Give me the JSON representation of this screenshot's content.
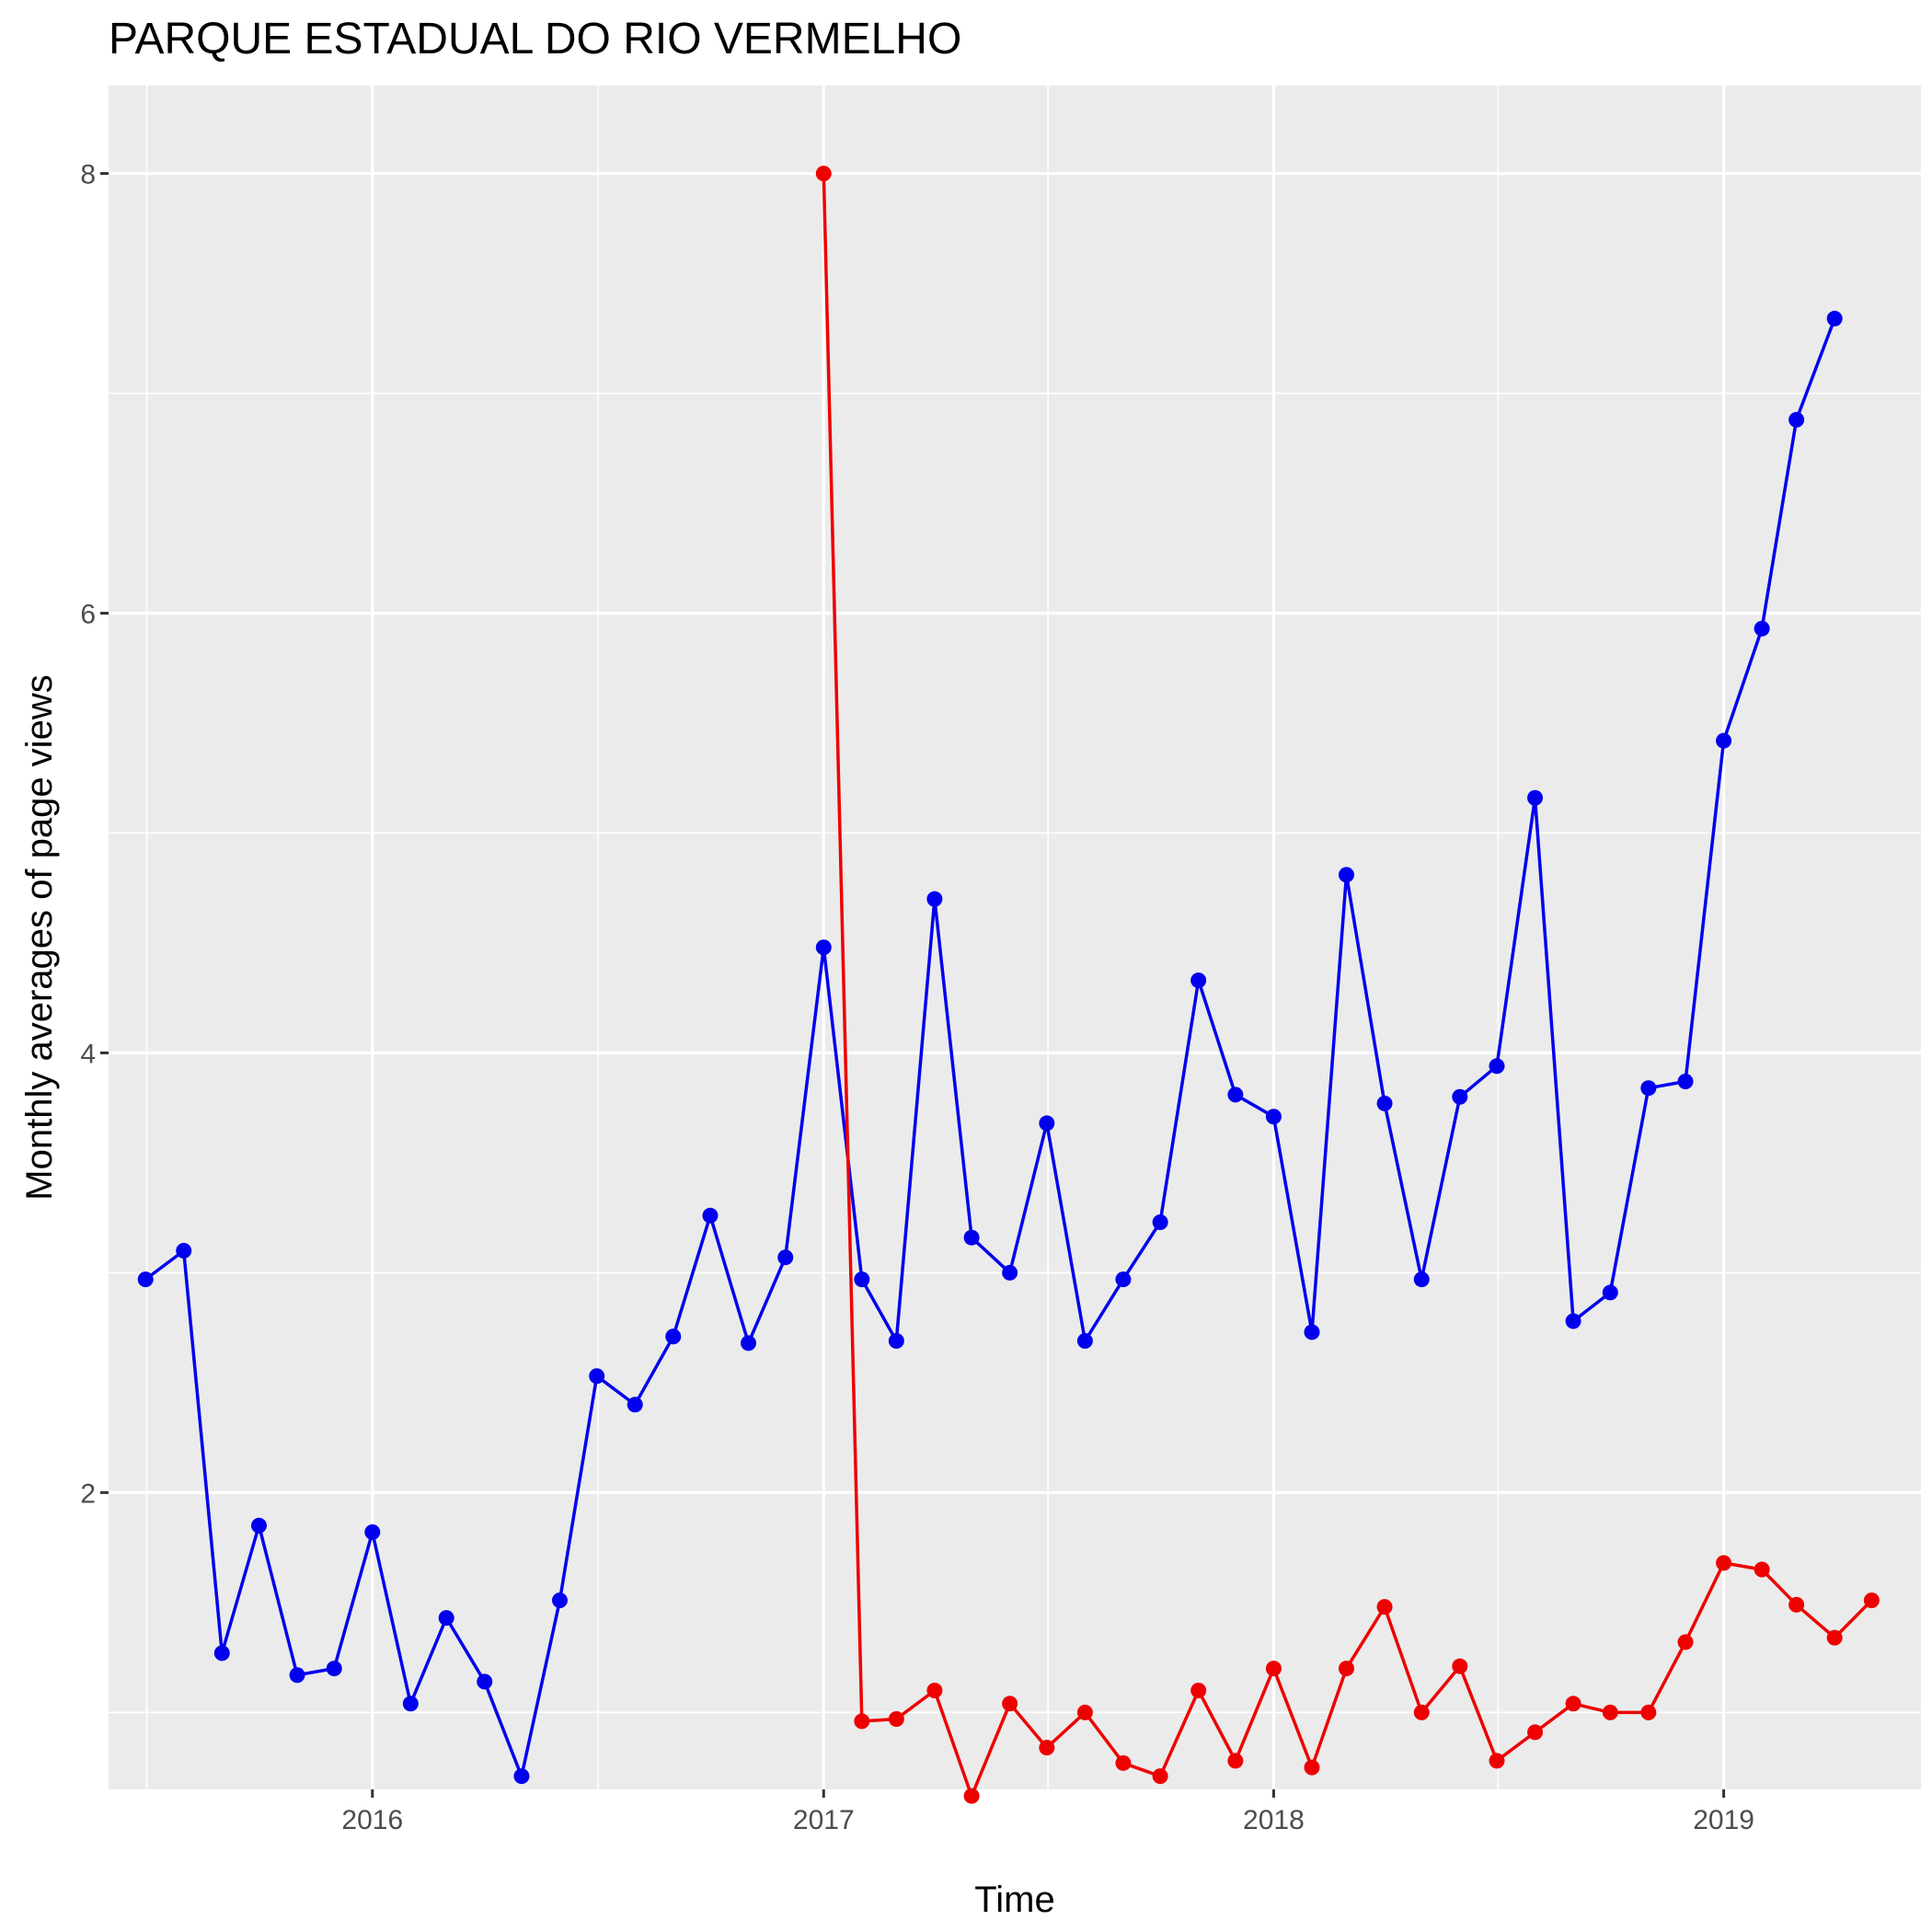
{
  "chart_data": {
    "type": "line",
    "title": "PARQUE ESTADUAL DO RIO VERMELHO",
    "xlabel": "Time",
    "ylabel": "Monthly averages of page views",
    "xlim": [
      "2015-06-01",
      "2019-06-10"
    ],
    "ylim": [
      0.65,
      8.4
    ],
    "x_ticks": [
      {
        "label": "2016",
        "value": "2016-01-01"
      },
      {
        "label": "2017",
        "value": "2017-01-01"
      },
      {
        "label": "2018",
        "value": "2018-01-01"
      },
      {
        "label": "2019",
        "value": "2019-01-01"
      }
    ],
    "y_ticks": [
      2,
      4,
      6,
      8
    ],
    "grid": true,
    "legend": "none",
    "colors": {
      "panel": "#ebebeb",
      "grid": "#ffffff",
      "tick_label": "#4d4d4d"
    },
    "series": [
      {
        "color": "#0000ee",
        "points": [
          [
            "2015-07-01",
            2.97
          ],
          [
            "2015-08-01",
            3.1
          ],
          [
            "2015-09-01",
            1.27
          ],
          [
            "2015-10-01",
            1.85
          ],
          [
            "2015-11-01",
            1.17
          ],
          [
            "2015-12-01",
            1.2
          ],
          [
            "2016-01-01",
            1.82
          ],
          [
            "2016-02-01",
            1.04
          ],
          [
            "2016-03-01",
            1.43
          ],
          [
            "2016-04-01",
            1.14
          ],
          [
            "2016-05-01",
            0.71
          ],
          [
            "2016-06-01",
            1.51
          ],
          [
            "2016-07-01",
            2.53
          ],
          [
            "2016-08-01",
            2.4
          ],
          [
            "2016-09-01",
            2.71
          ],
          [
            "2016-10-01",
            3.26
          ],
          [
            "2016-11-01",
            2.68
          ],
          [
            "2016-12-01",
            3.07
          ],
          [
            "2017-01-01",
            4.48
          ],
          [
            "2017-02-01",
            2.97
          ],
          [
            "2017-03-01",
            2.69
          ],
          [
            "2017-04-01",
            4.7
          ],
          [
            "2017-05-01",
            3.16
          ],
          [
            "2017-06-01",
            3.0
          ],
          [
            "2017-07-01",
            3.68
          ],
          [
            "2017-08-01",
            2.69
          ],
          [
            "2017-09-01",
            2.97
          ],
          [
            "2017-10-01",
            3.23
          ],
          [
            "2017-11-01",
            4.33
          ],
          [
            "2017-12-01",
            3.81
          ],
          [
            "2018-01-01",
            3.71
          ],
          [
            "2018-02-01",
            2.73
          ],
          [
            "2018-03-01",
            4.81
          ],
          [
            "2018-04-01",
            3.77
          ],
          [
            "2018-05-01",
            2.97
          ],
          [
            "2018-06-01",
            3.8
          ],
          [
            "2018-07-01",
            3.94
          ],
          [
            "2018-08-01",
            5.16
          ],
          [
            "2018-09-01",
            2.78
          ],
          [
            "2018-10-01",
            2.91
          ],
          [
            "2018-11-01",
            3.84
          ],
          [
            "2018-12-01",
            3.87
          ],
          [
            "2019-01-01",
            5.42
          ],
          [
            "2019-02-01",
            5.93
          ],
          [
            "2019-03-01",
            6.88
          ],
          [
            "2019-04-01",
            7.34
          ]
        ]
      },
      {
        "color": "#ee0000",
        "points": [
          [
            "2017-01-01",
            8.0
          ],
          [
            "2017-02-01",
            0.96
          ],
          [
            "2017-03-01",
            0.97
          ],
          [
            "2017-04-01",
            1.1
          ],
          [
            "2017-05-01",
            0.62
          ],
          [
            "2017-06-01",
            1.04
          ],
          [
            "2017-07-01",
            0.84
          ],
          [
            "2017-08-01",
            1.0
          ],
          [
            "2017-09-01",
            0.77
          ],
          [
            "2017-10-01",
            0.71
          ],
          [
            "2017-11-01",
            1.1
          ],
          [
            "2017-12-01",
            0.78
          ],
          [
            "2018-01-01",
            1.2
          ],
          [
            "2018-02-01",
            0.75
          ],
          [
            "2018-03-01",
            1.2
          ],
          [
            "2018-04-01",
            1.48
          ],
          [
            "2018-05-01",
            1.0
          ],
          [
            "2018-06-01",
            1.21
          ],
          [
            "2018-07-01",
            0.78
          ],
          [
            "2018-08-01",
            0.91
          ],
          [
            "2018-09-01",
            1.04
          ],
          [
            "2018-10-01",
            1.0
          ],
          [
            "2018-11-01",
            1.0
          ],
          [
            "2018-12-01",
            1.32
          ],
          [
            "2019-01-01",
            1.68
          ],
          [
            "2019-02-01",
            1.65
          ],
          [
            "2019-03-01",
            1.49
          ],
          [
            "2019-04-01",
            1.34
          ],
          [
            "2019-05-01",
            1.51
          ]
        ]
      }
    ]
  }
}
